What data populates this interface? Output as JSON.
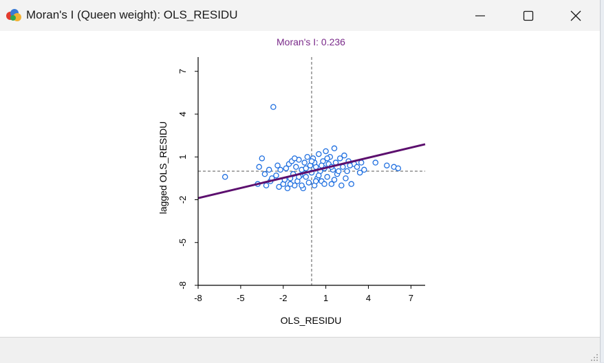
{
  "window": {
    "title": "Moran's I (Queen weight): OLS_RESIDU",
    "icons": [
      "app-logo-icon",
      "minimize-icon",
      "maximize-icon",
      "close-icon"
    ]
  },
  "colors": {
    "title_purple": "#7a2a8a",
    "regression_line": "#5c0f6e",
    "point_stroke": "#1f6fe0",
    "axis": "#000000",
    "reference_lines": "#555555"
  },
  "chart_data": {
    "type": "scatter",
    "title": "Moran's I: 0.236",
    "xlabel": "OLS_RESIDU",
    "ylabel": "lagged OLS_RESIDU",
    "xlim": [
      -8,
      8
    ],
    "ylim": [
      -8,
      8
    ],
    "x_ticks": [
      "-8",
      "-5",
      "-2",
      "1",
      "4",
      "7"
    ],
    "y_ticks": [
      "-8",
      "-5",
      "-2",
      "1",
      "4",
      "7"
    ],
    "reference_lines": {
      "x_mean": 0,
      "y_mean": 0
    },
    "regression": {
      "slope": 0.236,
      "intercept": 0
    },
    "grid": false,
    "legend": "none",
    "points": [
      {
        "x": -2.7,
        "y": 4.5
      },
      {
        "x": -6.1,
        "y": -0.4
      },
      {
        "x": -3.5,
        "y": 0.9
      },
      {
        "x": -3.7,
        "y": 0.3
      },
      {
        "x": -3.3,
        "y": -0.2
      },
      {
        "x": -3.8,
        "y": -0.9
      },
      {
        "x": -3.2,
        "y": -1.0
      },
      {
        "x": -2.9,
        "y": -0.7
      },
      {
        "x": -2.5,
        "y": -0.3
      },
      {
        "x": -2.4,
        "y": 0.4
      },
      {
        "x": -2.3,
        "y": -1.1
      },
      {
        "x": -2.0,
        "y": -0.9
      },
      {
        "x": -1.8,
        "y": 0.2
      },
      {
        "x": -1.7,
        "y": -1.2
      },
      {
        "x": -1.6,
        "y": 0.5
      },
      {
        "x": -1.5,
        "y": -0.5
      },
      {
        "x": -1.4,
        "y": 0.7
      },
      {
        "x": -1.3,
        "y": -0.2
      },
      {
        "x": -1.2,
        "y": -1.0
      },
      {
        "x": -1.1,
        "y": 0.3
      },
      {
        "x": -1.0,
        "y": -0.7
      },
      {
        "x": -0.9,
        "y": 0.8
      },
      {
        "x": -0.8,
        "y": -0.3
      },
      {
        "x": -0.7,
        "y": 0.1
      },
      {
        "x": -0.6,
        "y": -1.2
      },
      {
        "x": -0.5,
        "y": 0.6
      },
      {
        "x": -0.4,
        "y": -0.4
      },
      {
        "x": -0.3,
        "y": 1.0
      },
      {
        "x": -0.2,
        "y": -0.8
      },
      {
        "x": -0.1,
        "y": 0.4
      },
      {
        "x": 0.0,
        "y": -0.1
      },
      {
        "x": 0.1,
        "y": 0.9
      },
      {
        "x": 0.2,
        "y": -1.0
      },
      {
        "x": 0.3,
        "y": 0.3
      },
      {
        "x": 0.4,
        "y": -0.5
      },
      {
        "x": 0.5,
        "y": 1.2
      },
      {
        "x": 0.6,
        "y": 0.0
      },
      {
        "x": 0.7,
        "y": -0.7
      },
      {
        "x": 0.8,
        "y": 0.7
      },
      {
        "x": 0.9,
        "y": 0.2
      },
      {
        "x": 1.0,
        "y": 1.4
      },
      {
        "x": 1.1,
        "y": -0.4
      },
      {
        "x": 1.2,
        "y": 0.5
      },
      {
        "x": 1.3,
        "y": 1.0
      },
      {
        "x": 1.4,
        "y": -0.9
      },
      {
        "x": 1.5,
        "y": 0.1
      },
      {
        "x": 1.6,
        "y": 1.6
      },
      {
        "x": 1.7,
        "y": 0.6
      },
      {
        "x": 1.8,
        "y": -0.2
      },
      {
        "x": 2.0,
        "y": 0.9
      },
      {
        "x": 2.1,
        "y": -1.0
      },
      {
        "x": 2.2,
        "y": 0.3
      },
      {
        "x": 2.3,
        "y": 1.1
      },
      {
        "x": 2.5,
        "y": 0.0
      },
      {
        "x": 2.6,
        "y": 0.7
      },
      {
        "x": 2.8,
        "y": -0.9
      },
      {
        "x": 3.0,
        "y": 0.5
      },
      {
        "x": 3.2,
        "y": 0.3
      },
      {
        "x": 3.5,
        "y": 0.6
      },
      {
        "x": 3.7,
        "y": 0.1
      },
      {
        "x": 4.5,
        "y": 0.6
      },
      {
        "x": 5.3,
        "y": 0.4
      },
      {
        "x": 5.8,
        "y": 0.3
      },
      {
        "x": 6.1,
        "y": 0.2
      },
      {
        "x": -2.8,
        "y": -0.5
      },
      {
        "x": -2.2,
        "y": 0.1
      },
      {
        "x": -1.9,
        "y": -0.6
      },
      {
        "x": -1.2,
        "y": 0.9
      },
      {
        "x": -0.7,
        "y": -1.0
      },
      {
        "x": -0.4,
        "y": 0.2
      },
      {
        "x": 0.2,
        "y": 0.6
      },
      {
        "x": 0.5,
        "y": -0.3
      },
      {
        "x": 0.9,
        "y": -0.9
      },
      {
        "x": 1.4,
        "y": 0.3
      },
      {
        "x": 1.9,
        "y": 0.0
      },
      {
        "x": 2.4,
        "y": -0.5
      },
      {
        "x": -3.0,
        "y": 0.1
      },
      {
        "x": -1.5,
        "y": -0.9
      },
      {
        "x": -0.9,
        "y": -0.4
      },
      {
        "x": 0.0,
        "y": 0.7
      },
      {
        "x": 0.3,
        "y": -0.7
      },
      {
        "x": 0.7,
        "y": 0.4
      },
      {
        "x": 1.1,
        "y": 0.9
      },
      {
        "x": 1.6,
        "y": -0.6
      },
      {
        "x": 2.7,
        "y": 0.4
      },
      {
        "x": 3.4,
        "y": -0.1
      }
    ]
  }
}
